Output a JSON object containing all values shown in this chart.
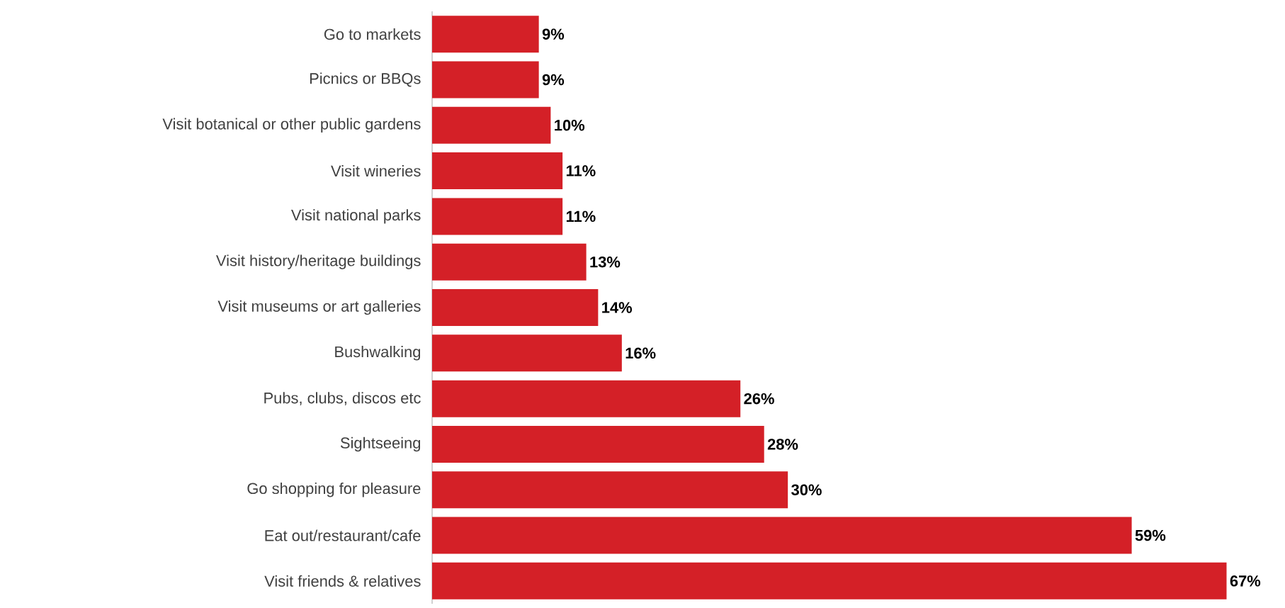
{
  "chart_data": {
    "type": "bar",
    "orientation": "horizontal",
    "color": "#d42027",
    "categories": [
      "Go to markets",
      "Picnics or BBQs",
      "Visit botanical or other public gardens",
      "Visit wineries",
      "Visit national parks",
      "Visit history/heritage buildings",
      "Visit museums or art galleries",
      "Bushwalking",
      "Pubs, clubs, discos etc",
      "Sightseeing",
      "Go shopping for pleasure",
      "Eat out/restaurant/cafe",
      "Visit friends & relatives"
    ],
    "values": [
      9,
      9,
      10,
      11,
      11,
      13,
      14,
      16,
      26,
      28,
      30,
      59,
      67
    ],
    "value_labels": [
      "9%",
      "9%",
      "10%",
      "11%",
      "11%",
      "13%",
      "14%",
      "16%",
      "26%",
      "28%",
      "30%",
      "59%",
      "67%"
    ]
  }
}
